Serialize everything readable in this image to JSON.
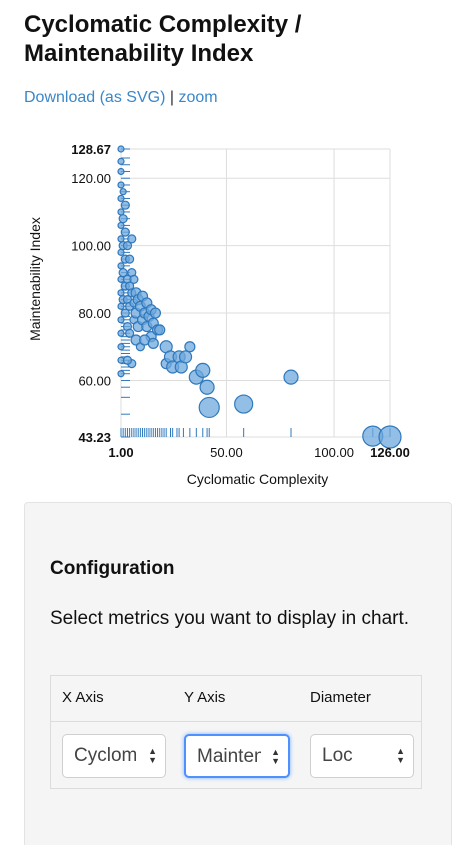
{
  "page": {
    "title_line1": "Cyclomatic Complexity /",
    "title_line2": "Maintenability Index",
    "download_link": "Download (as SVG)",
    "separator": "|",
    "zoom_link": "zoom"
  },
  "chart_data": {
    "type": "scatter",
    "xlabel": "Cyclomatic Complexity",
    "ylabel": "Maintenability Index",
    "xlim": [
      1,
      126
    ],
    "ylim": [
      43.23,
      128.67
    ],
    "grid": true,
    "x_ticks": [
      {
        "value": 1,
        "label": "1.00",
        "bold": true
      },
      {
        "value": 50,
        "label": "50.00",
        "bold": false
      },
      {
        "value": 100,
        "label": "100.00",
        "bold": false
      },
      {
        "value": 126,
        "label": "126.00",
        "bold": true
      }
    ],
    "y_ticks": [
      {
        "value": 43.23,
        "label": "43.23",
        "bold": true
      },
      {
        "value": 60,
        "label": "60.00",
        "bold": false
      },
      {
        "value": 80,
        "label": "80.00",
        "bold": false
      },
      {
        "value": 100,
        "label": "100.00",
        "bold": false
      },
      {
        "value": 120,
        "label": "120.00",
        "bold": false
      },
      {
        "value": 128.67,
        "label": "128.67",
        "bold": true
      }
    ],
    "points": [
      {
        "x": 1,
        "y": 128.67,
        "r": 3
      },
      {
        "x": 1,
        "y": 125,
        "r": 3
      },
      {
        "x": 1,
        "y": 122,
        "r": 3
      },
      {
        "x": 1,
        "y": 118,
        "r": 3
      },
      {
        "x": 1,
        "y": 114,
        "r": 3
      },
      {
        "x": 1,
        "y": 110,
        "r": 3
      },
      {
        "x": 1,
        "y": 106,
        "r": 3
      },
      {
        "x": 1,
        "y": 102,
        "r": 3
      },
      {
        "x": 1,
        "y": 98,
        "r": 3
      },
      {
        "x": 1,
        "y": 94,
        "r": 3
      },
      {
        "x": 1,
        "y": 90,
        "r": 3
      },
      {
        "x": 1,
        "y": 86,
        "r": 3
      },
      {
        "x": 1,
        "y": 82,
        "r": 3
      },
      {
        "x": 1,
        "y": 78,
        "r": 3
      },
      {
        "x": 1,
        "y": 74,
        "r": 3
      },
      {
        "x": 1,
        "y": 70,
        "r": 3
      },
      {
        "x": 1,
        "y": 66,
        "r": 3
      },
      {
        "x": 1,
        "y": 62,
        "r": 3
      },
      {
        "x": 2,
        "y": 116,
        "r": 3
      },
      {
        "x": 2,
        "y": 108,
        "r": 4
      },
      {
        "x": 2,
        "y": 100,
        "r": 4
      },
      {
        "x": 2,
        "y": 92,
        "r": 4
      },
      {
        "x": 2,
        "y": 84,
        "r": 4
      },
      {
        "x": 3,
        "y": 112,
        "r": 4
      },
      {
        "x": 3,
        "y": 104,
        "r": 4
      },
      {
        "x": 3,
        "y": 96,
        "r": 4
      },
      {
        "x": 3,
        "y": 88,
        "r": 4
      },
      {
        "x": 3,
        "y": 80,
        "r": 4
      },
      {
        "x": 4,
        "y": 100,
        "r": 4
      },
      {
        "x": 4,
        "y": 90,
        "r": 4
      },
      {
        "x": 4,
        "y": 84,
        "r": 4
      },
      {
        "x": 4,
        "y": 76,
        "r": 4
      },
      {
        "x": 5,
        "y": 96,
        "r": 4
      },
      {
        "x": 5,
        "y": 88,
        "r": 4
      },
      {
        "x": 5,
        "y": 82,
        "r": 4
      },
      {
        "x": 5,
        "y": 74,
        "r": 4
      },
      {
        "x": 6,
        "y": 102,
        "r": 4
      },
      {
        "x": 6,
        "y": 92,
        "r": 4
      },
      {
        "x": 6,
        "y": 86,
        "r": 4
      },
      {
        "x": 7,
        "y": 90,
        "r": 4
      },
      {
        "x": 7,
        "y": 83,
        "r": 4
      },
      {
        "x": 7,
        "y": 78,
        "r": 4
      },
      {
        "x": 8,
        "y": 86,
        "r": 5
      },
      {
        "x": 8,
        "y": 80,
        "r": 5
      },
      {
        "x": 9,
        "y": 84,
        "r": 5
      },
      {
        "x": 9,
        "y": 76,
        "r": 5
      },
      {
        "x": 10,
        "y": 82,
        "r": 5
      },
      {
        "x": 11,
        "y": 85,
        "r": 5
      },
      {
        "x": 11,
        "y": 78,
        "r": 5
      },
      {
        "x": 12,
        "y": 80,
        "r": 5
      },
      {
        "x": 13,
        "y": 83,
        "r": 5
      },
      {
        "x": 13,
        "y": 76,
        "r": 5
      },
      {
        "x": 14,
        "y": 79,
        "r": 5
      },
      {
        "x": 15,
        "y": 81,
        "r": 5
      },
      {
        "x": 15,
        "y": 73,
        "r": 5
      },
      {
        "x": 16,
        "y": 77,
        "r": 5
      },
      {
        "x": 17,
        "y": 80,
        "r": 5
      },
      {
        "x": 18,
        "y": 75,
        "r": 5
      },
      {
        "x": 8,
        "y": 72,
        "r": 5
      },
      {
        "x": 10,
        "y": 70,
        "r": 4
      },
      {
        "x": 12,
        "y": 72,
        "r": 5
      },
      {
        "x": 6,
        "y": 65,
        "r": 4
      },
      {
        "x": 4,
        "y": 66,
        "r": 4
      },
      {
        "x": 16,
        "y": 71,
        "r": 5
      },
      {
        "x": 19,
        "y": 75,
        "r": 5
      },
      {
        "x": 22,
        "y": 70,
        "r": 6
      },
      {
        "x": 22,
        "y": 65,
        "r": 5
      },
      {
        "x": 24,
        "y": 67,
        "r": 6
      },
      {
        "x": 25,
        "y": 64,
        "r": 6
      },
      {
        "x": 28,
        "y": 67,
        "r": 6
      },
      {
        "x": 29,
        "y": 64,
        "r": 6
      },
      {
        "x": 31,
        "y": 67,
        "r": 6
      },
      {
        "x": 33,
        "y": 70,
        "r": 5
      },
      {
        "x": 36,
        "y": 61,
        "r": 7
      },
      {
        "x": 39,
        "y": 63,
        "r": 7
      },
      {
        "x": 41,
        "y": 58,
        "r": 7
      },
      {
        "x": 42,
        "y": 52,
        "r": 10
      },
      {
        "x": 58,
        "y": 53,
        "r": 9
      },
      {
        "x": 80,
        "y": 61,
        "r": 7
      },
      {
        "x": 118,
        "y": 43.5,
        "r": 10
      },
      {
        "x": 126,
        "y": 43.23,
        "r": 11
      }
    ],
    "rug_x": [
      1,
      2,
      3,
      4,
      5,
      6,
      7,
      8,
      9,
      10,
      11,
      12,
      13,
      14,
      15,
      16,
      17,
      18,
      19,
      20,
      21,
      22,
      24,
      25,
      27,
      28,
      30,
      33,
      36,
      39,
      41,
      42,
      58,
      80,
      118,
      126
    ],
    "rug_y": [
      43.23,
      50,
      55,
      58,
      60,
      62,
      63,
      64,
      65,
      66,
      67,
      68,
      69,
      70,
      71,
      72,
      73,
      74,
      75,
      76,
      77,
      78,
      79,
      80,
      81,
      82,
      83,
      84,
      85,
      86,
      87,
      88,
      89,
      90,
      92,
      94,
      96,
      98,
      100,
      102,
      104,
      106,
      108,
      110,
      112,
      114,
      116,
      118,
      120,
      122,
      124,
      126,
      128.67
    ],
    "colors": {
      "fill": "#6fa8dc",
      "stroke": "#2f78bd",
      "rug": "#2f78bd",
      "grid": "#dddddd"
    }
  },
  "config": {
    "title": "Configuration",
    "description": "Select metrics you want to display in chart.",
    "columns": [
      "X Axis",
      "Y Axis",
      "Diameter"
    ],
    "x_value": "Cyclomatic Complexity",
    "y_value": "Maintenability Index",
    "diameter_value": "Loc"
  }
}
